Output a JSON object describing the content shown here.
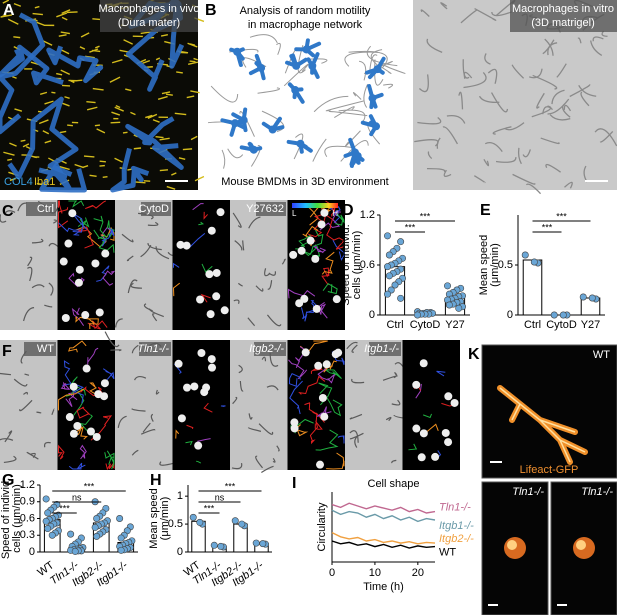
{
  "panels": {
    "a": {
      "letter": "A",
      "title": [
        "Macrophages in vivo",
        "(Dura mater)"
      ],
      "stains": [
        "COL4",
        "Iba1"
      ]
    },
    "b": {
      "letter": "B",
      "title": [
        "Analysis of random motility",
        "in macrophage network"
      ],
      "caption": "Mouse BMDMs in 3D environment",
      "right_title": [
        "Macrophages in vitro",
        "(3D matrigel)"
      ]
    },
    "c": {
      "letter": "C",
      "labels": [
        "Ctrl",
        "CytoD",
        "Y27632"
      ],
      "scale": [
        "L",
        "H"
      ]
    },
    "f": {
      "letter": "F",
      "labels": [
        "WT",
        "Tln1-/-",
        "Itgb2-/-",
        "Itgb1-/-"
      ]
    },
    "k": {
      "letter": "K",
      "labels": [
        "WT",
        "Tln1-/-",
        "Tln1-/-"
      ],
      "stain": "Lifeact-GFP"
    }
  },
  "chart_data": [
    {
      "type": "bar",
      "letter": "D",
      "y_label": [
        "Speed of individ.",
        "cells (μm/min)"
      ],
      "categories": [
        "Ctrl",
        "CytoD",
        "Y27"
      ],
      "values": [
        0.58,
        0.02,
        0.2
      ],
      "color": "#6aa6d6",
      "points": [
        [
          0.95,
          0.88,
          0.8,
          0.76,
          0.72,
          0.68,
          0.65,
          0.62,
          0.6,
          0.58,
          0.55,
          0.52,
          0.5,
          0.47,
          0.44,
          0.4,
          0.36,
          0.3,
          0.25,
          0.2
        ],
        [
          0.04,
          0.03,
          0.03,
          0.02,
          0.02,
          0.02,
          0.01,
          0.01,
          0.01,
          0
        ],
        [
          0.35,
          0.32,
          0.3,
          0.27,
          0.25,
          0.23,
          0.22,
          0.2,
          0.19,
          0.18,
          0.16,
          0.15,
          0.13,
          0.12,
          0.1,
          0.08
        ]
      ],
      "ylim": [
        0,
        1.2
      ],
      "yticks": [
        0,
        0.6,
        1.2
      ],
      "brackets": [
        {
          "text": "***",
          "pair": [
            "Ctrl",
            "Y27"
          ]
        },
        {
          "text": "***",
          "pair": [
            "Ctrl",
            "CytoD"
          ]
        }
      ]
    },
    {
      "type": "bar",
      "letter": "E",
      "y_label": [
        "Mean speed",
        "(μm/min)"
      ],
      "categories": [
        "Ctrl",
        "CytoD",
        "Y27"
      ],
      "values": [
        0.55,
        0,
        0.17
      ],
      "color": "#6aa6d6",
      "points": [
        [
          0.6,
          0.52,
          0.53
        ],
        [
          0,
          0,
          0
        ],
        [
          0.18,
          0.16,
          0.17
        ]
      ],
      "ylim": [
        0,
        1
      ],
      "yticks": [
        0,
        0.5
      ],
      "brackets": [
        {
          "text": "***",
          "pair": [
            "Ctrl",
            "Y27"
          ]
        },
        {
          "text": "***",
          "pair": [
            "Ctrl",
            "CytoD"
          ]
        }
      ]
    },
    {
      "type": "bar",
      "letter": "G",
      "y_label": [
        "Speed of individ.",
        "cells (μm/min)"
      ],
      "categories": [
        "WT",
        "Tln1-/-",
        "Itgb2-/-",
        "Itgb1-/-"
      ],
      "values": [
        0.58,
        0.08,
        0.52,
        0.17
      ],
      "color": "#6aa6d6",
      "points": [
        [
          0.95,
          0.85,
          0.8,
          0.75,
          0.7,
          0.66,
          0.63,
          0.6,
          0.58,
          0.55,
          0.52,
          0.5,
          0.46,
          0.42,
          0.38,
          0.34,
          0.3
        ],
        [
          0.32,
          0.25,
          0.18,
          0.14,
          0.1,
          0.08,
          0.06,
          0.05,
          0.04,
          0.03,
          0.02,
          0.02,
          0.01
        ],
        [
          0.9,
          0.78,
          0.7,
          0.64,
          0.6,
          0.56,
          0.52,
          0.5,
          0.47,
          0.44,
          0.4,
          0.36,
          0.32,
          0.28
        ],
        [
          0.6,
          0.45,
          0.38,
          0.3,
          0.25,
          0.2,
          0.17,
          0.15,
          0.12,
          0.1,
          0.08,
          0.06,
          0.04,
          0.03
        ]
      ],
      "ylim": [
        0,
        1.2
      ],
      "yticks": [
        0,
        0.3,
        0.6,
        0.9,
        1.2
      ],
      "brackets": [
        {
          "text": "***",
          "pair": [
            "WT",
            "Itgb1-/-"
          ]
        },
        {
          "text": "ns",
          "pair": [
            "WT",
            "Itgb2-/-"
          ]
        },
        {
          "text": "***",
          "pair": [
            "WT",
            "Tln1-/-"
          ]
        }
      ]
    },
    {
      "type": "bar",
      "letter": "H",
      "y_label": [
        "Mean speed",
        "(μm/min)"
      ],
      "categories": [
        "WT",
        "Tln1-/-",
        "Itgb2-/-",
        "Itgb1-/-"
      ],
      "values": [
        0.55,
        0.1,
        0.5,
        0.15
      ],
      "color": "#6aa6d6",
      "points": [
        [
          0.62,
          0.5,
          0.53
        ],
        [
          0.12,
          0.09,
          0.1
        ],
        [
          0.56,
          0.47,
          0.5
        ],
        [
          0.16,
          0.14,
          0.15
        ]
      ],
      "ylim": [
        0,
        1.2
      ],
      "yticks": [
        0,
        0.5,
        1
      ],
      "brackets": [
        {
          "text": "***",
          "pair": [
            "WT",
            "Itgb1-/-"
          ]
        },
        {
          "text": "ns",
          "pair": [
            "WT",
            "Itgb2-/-"
          ]
        },
        {
          "text": "***",
          "pair": [
            "WT",
            "Tln1-/-"
          ]
        }
      ]
    },
    {
      "type": "line",
      "letter": "I",
      "title": "Cell shape",
      "y_label": "Circularity",
      "x_label": "Time (h)",
      "x": [
        0,
        2,
        4,
        6,
        8,
        10,
        12,
        14,
        16,
        18,
        20,
        22,
        24
      ],
      "xlim": [
        0,
        24
      ],
      "xticks": [
        0,
        10,
        20
      ],
      "ylim": [
        0,
        1
      ],
      "series": [
        {
          "name": "Tln1-/-",
          "color": "#c06890",
          "values": [
            0.82,
            0.78,
            0.84,
            0.8,
            0.76,
            0.8,
            0.77,
            0.74,
            0.78,
            0.72,
            0.75,
            0.7,
            0.72
          ]
        },
        {
          "name": "Itgb1-/-",
          "color": "#6a9aa8",
          "values": [
            0.74,
            0.68,
            0.72,
            0.7,
            0.64,
            0.68,
            0.62,
            0.66,
            0.6,
            0.64,
            0.58,
            0.62,
            0.6
          ]
        },
        {
          "name": "Itgb2-/-",
          "color": "#f0a040",
          "values": [
            0.42,
            0.36,
            0.33,
            0.35,
            0.3,
            0.32,
            0.28,
            0.3,
            0.27,
            0.29,
            0.26,
            0.28,
            0.27
          ]
        },
        {
          "name": "WT",
          "color": "#000000",
          "values": [
            0.3,
            0.26,
            0.28,
            0.24,
            0.26,
            0.22,
            0.25,
            0.21,
            0.24,
            0.2,
            0.23,
            0.21,
            0.22
          ]
        }
      ]
    }
  ]
}
